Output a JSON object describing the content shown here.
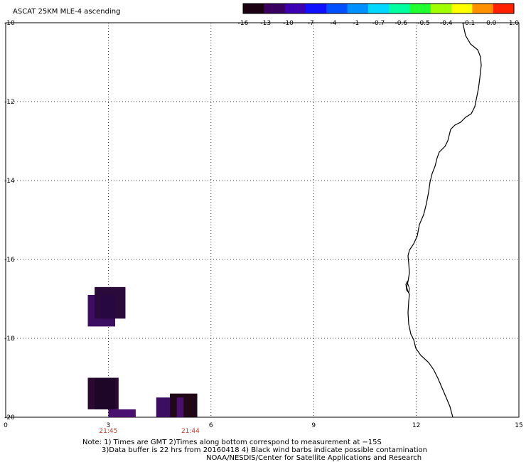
{
  "title": "ASCAT 25KM MLE-4 ascending",
  "colorbar": {
    "labels": [
      "-16",
      "-13",
      "-10",
      "-7",
      "-4",
      "-1",
      "-0.7",
      "-0.6",
      "-0.5",
      "-0.4",
      "-0.1",
      "0.0",
      "1.0"
    ],
    "colors": [
      "#1a0010",
      "#3a0060",
      "#3c00b0",
      "#1010ff",
      "#0050ff",
      "#0090ff",
      "#00d8ff",
      "#00ffa0",
      "#20ff30",
      "#a0ff00",
      "#ffff00",
      "#ff9000",
      "#ff2000"
    ]
  },
  "axes": {
    "x_ticks": [
      "0",
      "3",
      "6",
      "9",
      "12",
      "15"
    ],
    "y_ticks": [
      "-10",
      "-12",
      "-14",
      "-16",
      "-18",
      "-20"
    ],
    "xlim": [
      0,
      15
    ],
    "ylim": [
      -20,
      -10
    ]
  },
  "time_labels": [
    {
      "text": "21:45",
      "x": 3.0
    },
    {
      "text": "21:44",
      "x": 5.4
    }
  ],
  "data_cells": [
    {
      "x0": 2.4,
      "x1": 3.2,
      "y0": -17.7,
      "y1": -16.9,
      "color": "#3c0e62"
    },
    {
      "x0": 2.6,
      "x1": 3.5,
      "y0": -17.5,
      "y1": -16.7,
      "color": "#2a0a3a"
    },
    {
      "x0": 2.8,
      "x1": 3.2,
      "y0": -17.5,
      "y1": -16.9,
      "color": "#280840"
    },
    {
      "x0": 2.4,
      "x1": 3.3,
      "y0": -19.8,
      "y1": -19.0,
      "color": "#2a0830"
    },
    {
      "x0": 2.6,
      "x1": 3.2,
      "y0": -19.8,
      "y1": -19.0,
      "color": "#1e0628"
    },
    {
      "x0": 3.0,
      "x1": 3.8,
      "y0": -20.0,
      "y1": -19.8,
      "color": "#4a1070"
    },
    {
      "x0": 4.4,
      "x1": 5.2,
      "y0": -20.0,
      "y1": -19.5,
      "color": "#3c0e62"
    },
    {
      "x0": 4.8,
      "x1": 5.6,
      "y0": -20.0,
      "y1": -19.4,
      "color": "#200816"
    },
    {
      "x0": 5.0,
      "x1": 5.2,
      "y0": -20.0,
      "y1": -19.5,
      "color": "#4a1070"
    }
  ],
  "coastline_label": "coastline",
  "notes": {
    "line1": "Note: 1) Times are GMT 2)Times along bottom correspond to measurement at −15S",
    "line2": "3)Data buffer is 22 hrs from 20160418 4) Black wind barbs indicate possible contamination",
    "line3": "NOAA/NESDIS/Center for Satellite Applications and Research"
  }
}
